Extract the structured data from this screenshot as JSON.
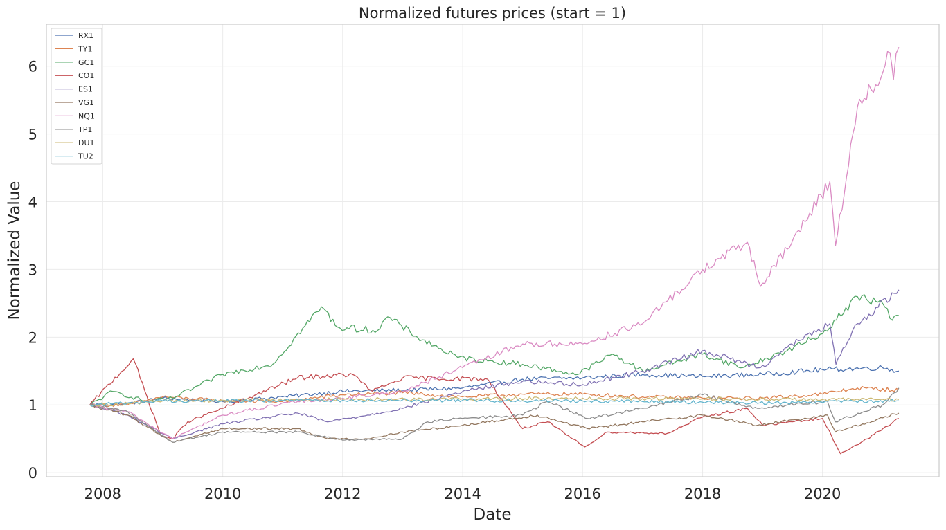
{
  "chart_data": {
    "type": "line",
    "title": "Normalized futures prices (start = 1)",
    "xlabel": "Date",
    "ylabel": "Normalized Value",
    "xlim": [
      "2007-01-23",
      "2021-12-11"
    ],
    "ylim": [
      -0.06,
      6.62
    ],
    "x_ticks": [
      "2008",
      "2010",
      "2012",
      "2014",
      "2016",
      "2018",
      "2020"
    ],
    "y_ticks": [
      "0",
      "1",
      "2",
      "3",
      "4",
      "5",
      "6"
    ],
    "grid": true,
    "legend_position": "upper-left",
    "series": [
      {
        "name": "RX1",
        "color": "#4c72b0",
        "points": [
          [
            "2007-10-15",
            1.0
          ],
          [
            "2008-06-01",
            1.02
          ],
          [
            "2009-01-01",
            1.1
          ],
          [
            "2010-01-01",
            1.05
          ],
          [
            "2011-01-01",
            1.12
          ],
          [
            "2012-01-01",
            1.2
          ],
          [
            "2013-01-01",
            1.22
          ],
          [
            "2014-01-01",
            1.25
          ],
          [
            "2015-01-01",
            1.38
          ],
          [
            "2016-01-01",
            1.4
          ],
          [
            "2017-01-01",
            1.45
          ],
          [
            "2018-01-01",
            1.42
          ],
          [
            "2019-01-01",
            1.45
          ],
          [
            "2020-01-01",
            1.52
          ],
          [
            "2021-01-01",
            1.55
          ],
          [
            "2021-04-10",
            1.5
          ]
        ]
      },
      {
        "name": "TY1",
        "color": "#dd8452",
        "points": [
          [
            "2007-10-15",
            1.0
          ],
          [
            "2008-06-01",
            1.0
          ],
          [
            "2009-01-01",
            1.12
          ],
          [
            "2010-01-01",
            1.06
          ],
          [
            "2011-01-01",
            1.05
          ],
          [
            "2012-01-01",
            1.15
          ],
          [
            "2013-01-01",
            1.18
          ],
          [
            "2014-01-01",
            1.12
          ],
          [
            "2015-01-01",
            1.16
          ],
          [
            "2016-01-01",
            1.16
          ],
          [
            "2017-01-01",
            1.12
          ],
          [
            "2018-01-01",
            1.1
          ],
          [
            "2019-01-01",
            1.1
          ],
          [
            "2020-01-01",
            1.16
          ],
          [
            "2020-08-01",
            1.25
          ],
          [
            "2021-04-10",
            1.22
          ]
        ]
      },
      {
        "name": "GC1",
        "color": "#55a868",
        "points": [
          [
            "2007-10-15",
            1.0
          ],
          [
            "2008-03-01",
            1.2
          ],
          [
            "2008-10-01",
            1.05
          ],
          [
            "2009-03-01",
            1.1
          ],
          [
            "2010-01-01",
            1.45
          ],
          [
            "2010-11-01",
            1.6
          ],
          [
            "2011-08-25",
            2.45
          ],
          [
            "2011-12-01",
            2.15
          ],
          [
            "2012-08-01",
            2.1
          ],
          [
            "2012-10-01",
            2.3
          ],
          [
            "2013-04-01",
            2.0
          ],
          [
            "2013-12-01",
            1.7
          ],
          [
            "2014-06-01",
            1.65
          ],
          [
            "2015-01-01",
            1.6
          ],
          [
            "2015-12-01",
            1.45
          ],
          [
            "2016-07-01",
            1.75
          ],
          [
            "2017-01-01",
            1.5
          ],
          [
            "2018-01-01",
            1.75
          ],
          [
            "2018-09-01",
            1.55
          ],
          [
            "2019-06-01",
            1.8
          ],
          [
            "2020-01-01",
            2.05
          ],
          [
            "2020-08-01",
            2.6
          ],
          [
            "2021-01-01",
            2.5
          ],
          [
            "2021-03-01",
            2.25
          ],
          [
            "2021-04-10",
            2.32
          ]
        ]
      },
      {
        "name": "CO1",
        "color": "#c44e52",
        "points": [
          [
            "2007-10-15",
            1.0
          ],
          [
            "2008-07-05",
            1.68
          ],
          [
            "2008-12-20",
            0.55
          ],
          [
            "2009-03-01",
            0.5
          ],
          [
            "2009-06-01",
            0.75
          ],
          [
            "2010-01-01",
            0.95
          ],
          [
            "2011-04-01",
            1.4
          ],
          [
            "2012-03-01",
            1.45
          ],
          [
            "2012-07-01",
            1.2
          ],
          [
            "2013-01-01",
            1.4
          ],
          [
            "2014-06-01",
            1.38
          ],
          [
            "2015-01-01",
            0.65
          ],
          [
            "2015-06-01",
            0.75
          ],
          [
            "2016-01-15",
            0.38
          ],
          [
            "2016-06-01",
            0.6
          ],
          [
            "2017-06-01",
            0.58
          ],
          [
            "2018-01-01",
            0.82
          ],
          [
            "2018-10-01",
            0.95
          ],
          [
            "2019-01-01",
            0.7
          ],
          [
            "2020-01-01",
            0.8
          ],
          [
            "2020-04-20",
            0.28
          ],
          [
            "2020-10-01",
            0.5
          ],
          [
            "2021-04-10",
            0.8
          ]
        ]
      },
      {
        "name": "ES1",
        "color": "#8172b3",
        "points": [
          [
            "2007-10-15",
            1.0
          ],
          [
            "2008-06-01",
            0.85
          ],
          [
            "2009-03-01",
            0.5
          ],
          [
            "2010-01-01",
            0.72
          ],
          [
            "2011-04-01",
            0.88
          ],
          [
            "2011-10-01",
            0.75
          ],
          [
            "2012-06-01",
            0.85
          ],
          [
            "2013-01-01",
            0.95
          ],
          [
            "2014-01-01",
            1.2
          ],
          [
            "2015-01-01",
            1.35
          ],
          [
            "2016-01-01",
            1.3
          ],
          [
            "2017-01-01",
            1.5
          ],
          [
            "2018-01-01",
            1.8
          ],
          [
            "2018-12-20",
            1.55
          ],
          [
            "2019-06-01",
            1.85
          ],
          [
            "2020-02-15",
            2.2
          ],
          [
            "2020-03-23",
            1.6
          ],
          [
            "2020-08-01",
            2.2
          ],
          [
            "2021-04-10",
            2.7
          ]
        ]
      },
      {
        "name": "VG1",
        "color": "#937860",
        "points": [
          [
            "2007-10-15",
            1.0
          ],
          [
            "2008-06-01",
            0.85
          ],
          [
            "2009-03-01",
            0.45
          ],
          [
            "2010-01-01",
            0.65
          ],
          [
            "2011-04-01",
            0.65
          ],
          [
            "2011-10-01",
            0.5
          ],
          [
            "2012-06-01",
            0.5
          ],
          [
            "2013-01-01",
            0.6
          ],
          [
            "2014-01-01",
            0.7
          ],
          [
            "2015-04-01",
            0.85
          ],
          [
            "2016-02-01",
            0.65
          ],
          [
            "2017-01-01",
            0.75
          ],
          [
            "2018-01-01",
            0.85
          ],
          [
            "2018-12-01",
            0.7
          ],
          [
            "2020-02-01",
            0.85
          ],
          [
            "2020-03-20",
            0.6
          ],
          [
            "2021-04-10",
            0.88
          ]
        ]
      },
      {
        "name": "NQ1",
        "color": "#da8bc3",
        "points": [
          [
            "2007-10-15",
            1.0
          ],
          [
            "2008-06-01",
            0.9
          ],
          [
            "2009-03-01",
            0.5
          ],
          [
            "2010-01-01",
            0.85
          ],
          [
            "2011-04-01",
            1.05
          ],
          [
            "2012-01-01",
            1.1
          ],
          [
            "2013-01-01",
            1.2
          ],
          [
            "2014-01-01",
            1.55
          ],
          [
            "2015-01-01",
            1.9
          ],
          [
            "2016-01-01",
            1.9
          ],
          [
            "2017-01-01",
            2.2
          ],
          [
            "2018-01-01",
            3.0
          ],
          [
            "2018-10-01",
            3.4
          ],
          [
            "2018-12-20",
            2.75
          ],
          [
            "2019-06-01",
            3.3
          ],
          [
            "2020-02-15",
            4.3
          ],
          [
            "2020-03-20",
            3.35
          ],
          [
            "2020-08-01",
            5.4
          ],
          [
            "2021-01-01",
            5.9
          ],
          [
            "2021-02-15",
            6.2
          ],
          [
            "2021-03-08",
            5.8
          ],
          [
            "2021-04-10",
            6.28
          ]
        ]
      },
      {
        "name": "TP1",
        "color": "#8c8c8c",
        "points": [
          [
            "2007-10-15",
            1.0
          ],
          [
            "2008-06-01",
            0.9
          ],
          [
            "2009-03-01",
            0.45
          ],
          [
            "2010-01-01",
            0.6
          ],
          [
            "2011-04-01",
            0.6
          ],
          [
            "2012-01-01",
            0.48
          ],
          [
            "2013-01-01",
            0.5
          ],
          [
            "2013-06-01",
            0.75
          ],
          [
            "2014-01-01",
            0.8
          ],
          [
            "2015-01-01",
            0.85
          ],
          [
            "2015-06-01",
            1.05
          ],
          [
            "2016-02-01",
            0.8
          ],
          [
            "2017-01-01",
            0.95
          ],
          [
            "2018-01-01",
            1.15
          ],
          [
            "2018-12-01",
            0.95
          ],
          [
            "2019-06-01",
            1.0
          ],
          [
            "2020-02-01",
            1.05
          ],
          [
            "2020-03-20",
            0.75
          ],
          [
            "2021-01-01",
            1.0
          ],
          [
            "2021-04-10",
            1.25
          ]
        ]
      },
      {
        "name": "DU1",
        "color": "#ccb974",
        "points": [
          [
            "2007-10-15",
            1.0
          ],
          [
            "2008-06-01",
            1.02
          ],
          [
            "2009-01-01",
            1.06
          ],
          [
            "2010-01-01",
            1.07
          ],
          [
            "2012-01-01",
            1.08
          ],
          [
            "2014-01-01",
            1.09
          ],
          [
            "2016-01-01",
            1.1
          ],
          [
            "2018-01-01",
            1.09
          ],
          [
            "2020-01-01",
            1.08
          ],
          [
            "2021-04-10",
            1.08
          ]
        ]
      },
      {
        "name": "TU2",
        "color": "#64b5cd",
        "points": [
          [
            "2007-10-15",
            1.0
          ],
          [
            "2008-06-01",
            1.03
          ],
          [
            "2009-01-01",
            1.06
          ],
          [
            "2010-01-01",
            1.06
          ],
          [
            "2012-01-01",
            1.07
          ],
          [
            "2014-01-01",
            1.07
          ],
          [
            "2016-01-01",
            1.06
          ],
          [
            "2018-01-01",
            1.04
          ],
          [
            "2019-06-01",
            1.03
          ],
          [
            "2020-03-01",
            1.06
          ],
          [
            "2021-04-10",
            1.06
          ]
        ]
      }
    ]
  }
}
